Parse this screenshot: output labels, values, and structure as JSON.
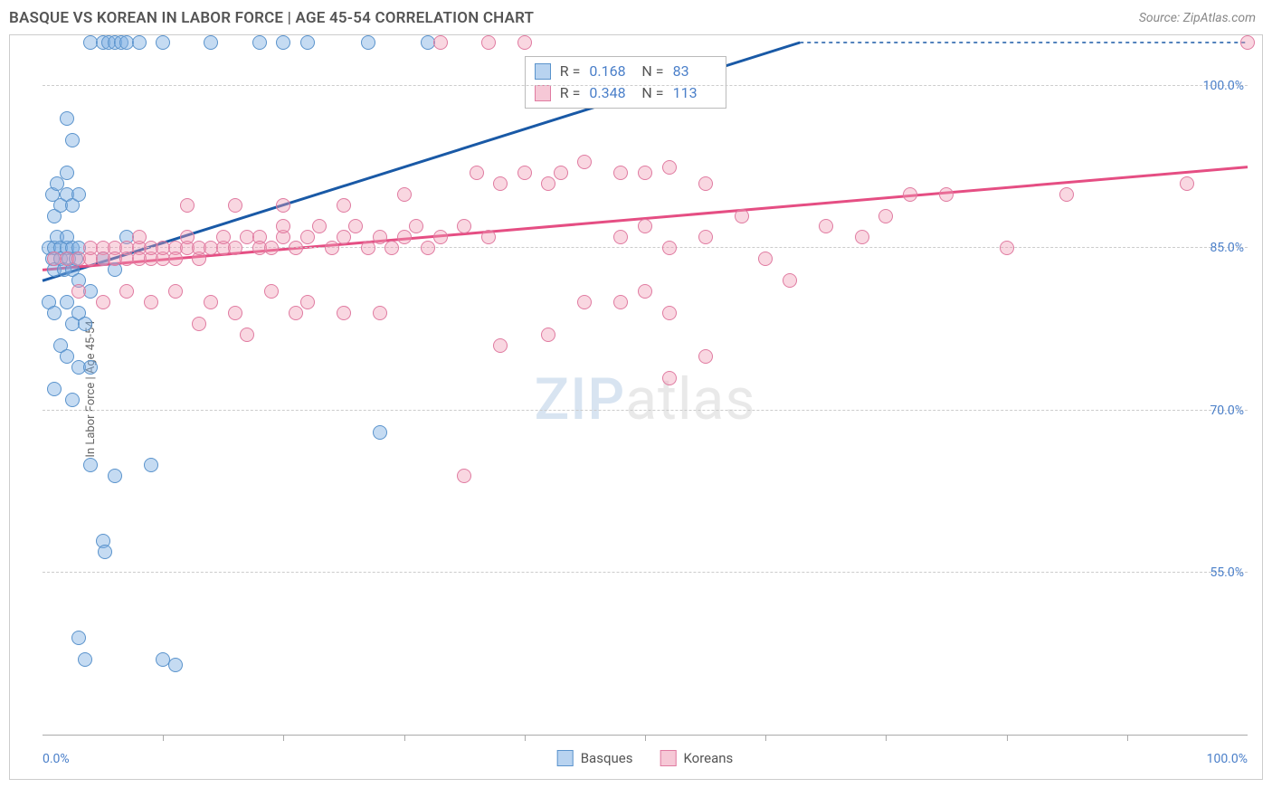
{
  "header": {
    "title": "BASQUE VS KOREAN IN LABOR FORCE | AGE 45-54 CORRELATION CHART",
    "source": "Source: ZipAtlas.com"
  },
  "chart": {
    "type": "scatter",
    "y_axis": {
      "title": "In Labor Force | Age 45-54",
      "ticks": [
        55.0,
        70.0,
        85.0,
        100.0
      ],
      "tick_format": "%",
      "min": 40.0,
      "max": 104.0,
      "label_color": "#4a7fc9",
      "grid_color": "#cccccc"
    },
    "x_axis": {
      "min": 0.0,
      "max": 100.0,
      "label_left": "0.0%",
      "label_right": "100.0%",
      "ticks_at": [
        10,
        20,
        30,
        40,
        50,
        60,
        70,
        80,
        90
      ],
      "label_color": "#4a7fc9"
    },
    "series": [
      {
        "name": "Basques",
        "marker_fill": "rgba(126,175,227,0.45)",
        "marker_stroke": "#5a93cc",
        "marker_size": 16,
        "trend_color": "#1959a6",
        "trend_width": 3,
        "trend_y_at_x0": 82.0,
        "trend_y_at_x100": 117.0,
        "stats": {
          "R": "0.168",
          "N": "83"
        },
        "points": [
          [
            0.5,
            85
          ],
          [
            0.8,
            84
          ],
          [
            1,
            83
          ],
          [
            1,
            85
          ],
          [
            1.2,
            86
          ],
          [
            1.5,
            85
          ],
          [
            1.5,
            84
          ],
          [
            1.8,
            83
          ],
          [
            2,
            85
          ],
          [
            2,
            86
          ],
          [
            2.2,
            84
          ],
          [
            2.5,
            85
          ],
          [
            2.5,
            83
          ],
          [
            2.8,
            84
          ],
          [
            3,
            85
          ],
          [
            3,
            82
          ],
          [
            1,
            88
          ],
          [
            1.5,
            89
          ],
          [
            2,
            90
          ],
          [
            2.5,
            89
          ],
          [
            0.8,
            90
          ],
          [
            1.2,
            91
          ],
          [
            2,
            92
          ],
          [
            3,
            90
          ],
          [
            0.5,
            80
          ],
          [
            1,
            79
          ],
          [
            2,
            80
          ],
          [
            2.5,
            78
          ],
          [
            3,
            79
          ],
          [
            3.5,
            78
          ],
          [
            1.5,
            76
          ],
          [
            2,
            75
          ],
          [
            3,
            74
          ],
          [
            4,
            74
          ],
          [
            1,
            72
          ],
          [
            2.5,
            71
          ],
          [
            4,
            104
          ],
          [
            5,
            104
          ],
          [
            5.5,
            104
          ],
          [
            6,
            104
          ],
          [
            6.5,
            104
          ],
          [
            7,
            104
          ],
          [
            8,
            104
          ],
          [
            10,
            104
          ],
          [
            14,
            104
          ],
          [
            18,
            104
          ],
          [
            20,
            104
          ],
          [
            22,
            104
          ],
          [
            27,
            104
          ],
          [
            32,
            104
          ],
          [
            2,
            97
          ],
          [
            2.5,
            95
          ],
          [
            5,
            84
          ],
          [
            6,
            83
          ],
          [
            7,
            86
          ],
          [
            4,
            81
          ],
          [
            4,
            65
          ],
          [
            6,
            64
          ],
          [
            9,
            65
          ],
          [
            5,
            58
          ],
          [
            5.2,
            57
          ],
          [
            3,
            49
          ],
          [
            3.5,
            47
          ],
          [
            10,
            47
          ],
          [
            11,
            46.5
          ],
          [
            28,
            68
          ]
        ]
      },
      {
        "name": "Koreans",
        "marker_fill": "rgba(239,155,181,0.40)",
        "marker_stroke": "#e07ba1",
        "marker_size": 16,
        "trend_color": "#e54e83",
        "trend_width": 3,
        "trend_y_at_x0": 83.0,
        "trend_y_at_x100": 92.5,
        "stats": {
          "R": "0.348",
          "N": "113"
        },
        "points": [
          [
            1,
            84
          ],
          [
            2,
            84
          ],
          [
            3,
            84
          ],
          [
            4,
            84
          ],
          [
            4,
            85
          ],
          [
            5,
            85
          ],
          [
            5,
            84
          ],
          [
            6,
            85
          ],
          [
            6,
            84
          ],
          [
            7,
            85
          ],
          [
            7,
            84
          ],
          [
            8,
            85
          ],
          [
            8,
            86
          ],
          [
            8,
            84
          ],
          [
            9,
            84
          ],
          [
            9,
            85
          ],
          [
            10,
            84
          ],
          [
            10,
            85
          ],
          [
            11,
            85
          ],
          [
            11,
            84
          ],
          [
            12,
            85
          ],
          [
            12,
            86
          ],
          [
            13,
            84
          ],
          [
            13,
            85
          ],
          [
            14,
            85
          ],
          [
            15,
            85
          ],
          [
            15,
            86
          ],
          [
            16,
            85
          ],
          [
            17,
            86
          ],
          [
            18,
            86
          ],
          [
            18,
            85
          ],
          [
            19,
            85
          ],
          [
            20,
            86
          ],
          [
            20,
            87
          ],
          [
            21,
            85
          ],
          [
            22,
            86
          ],
          [
            23,
            87
          ],
          [
            24,
            85
          ],
          [
            25,
            86
          ],
          [
            26,
            87
          ],
          [
            27,
            85
          ],
          [
            28,
            86
          ],
          [
            29,
            85
          ],
          [
            30,
            86
          ],
          [
            31,
            87
          ],
          [
            32,
            85
          ],
          [
            33,
            86
          ],
          [
            35,
            87
          ],
          [
            37,
            86
          ],
          [
            3,
            81
          ],
          [
            5,
            80
          ],
          [
            7,
            81
          ],
          [
            9,
            80
          ],
          [
            11,
            81
          ],
          [
            14,
            80
          ],
          [
            16,
            79
          ],
          [
            19,
            81
          ],
          [
            22,
            80
          ],
          [
            25,
            79
          ],
          [
            28,
            79
          ],
          [
            13,
            78
          ],
          [
            17,
            77
          ],
          [
            21,
            79
          ],
          [
            12,
            89
          ],
          [
            16,
            89
          ],
          [
            20,
            89
          ],
          [
            25,
            89
          ],
          [
            30,
            90
          ],
          [
            36,
            92
          ],
          [
            38,
            91
          ],
          [
            40,
            92
          ],
          [
            42,
            91
          ],
          [
            43,
            92
          ],
          [
            45,
            93
          ],
          [
            48,
            92
          ],
          [
            50,
            92
          ],
          [
            52,
            92.5
          ],
          [
            55,
            91
          ],
          [
            48,
            86
          ],
          [
            50,
            87
          ],
          [
            52,
            85
          ],
          [
            55,
            86
          ],
          [
            58,
            88
          ],
          [
            60,
            84
          ],
          [
            62,
            82
          ],
          [
            65,
            87
          ],
          [
            68,
            86
          ],
          [
            70,
            88
          ],
          [
            72,
            90
          ],
          [
            75,
            90
          ],
          [
            80,
            85
          ],
          [
            85,
            90
          ],
          [
            95,
            91
          ],
          [
            100,
            104
          ],
          [
            45,
            80
          ],
          [
            48,
            80
          ],
          [
            50,
            81
          ],
          [
            52,
            79
          ],
          [
            38,
            76
          ],
          [
            42,
            77
          ],
          [
            52,
            73
          ],
          [
            35,
            64
          ],
          [
            55,
            75
          ],
          [
            33,
            104
          ],
          [
            37,
            104
          ],
          [
            40,
            104
          ]
        ]
      }
    ],
    "stats_box": {
      "left_pct": 40,
      "top_pct": 2
    },
    "watermark": "ZIPatlas",
    "background_color": "#ffffff"
  },
  "legend": {
    "items": [
      {
        "label": "Basques",
        "fill": "rgba(126,175,227,0.55)",
        "stroke": "#5a93cc"
      },
      {
        "label": "Koreans",
        "fill": "rgba(239,155,181,0.55)",
        "stroke": "#e07ba1"
      }
    ]
  }
}
